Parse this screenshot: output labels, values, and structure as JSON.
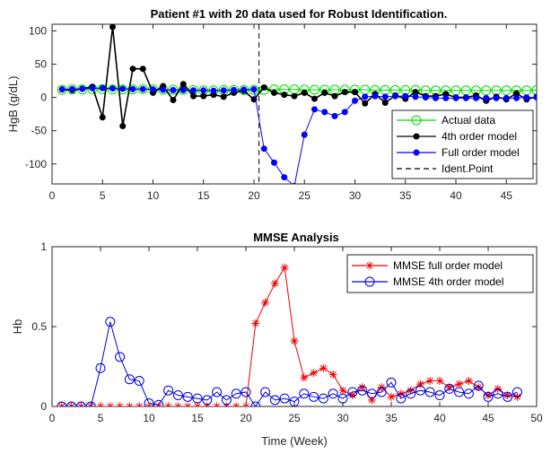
{
  "chart_data": [
    {
      "type": "line",
      "title": "Patient #1 with 20 data used for Robust Identification.",
      "xlabel": "",
      "ylabel": "HgB (g/dL)",
      "xlim": [
        0,
        48
      ],
      "ylim": [
        -130,
        110
      ],
      "xticks": [
        0,
        5,
        10,
        15,
        20,
        25,
        30,
        35,
        40,
        45
      ],
      "yticks": [
        -100,
        -50,
        0,
        50,
        100
      ],
      "grid": false,
      "legend_position": "bottom-right",
      "vline": {
        "x": 20.5,
        "label": "Ident.Point",
        "color": "#000000"
      },
      "series": [
        {
          "name": "Actual data",
          "color": "#00dd00",
          "marker": "circle-open",
          "x": [
            1,
            2,
            3,
            4,
            5,
            6,
            7,
            8,
            9,
            10,
            11,
            12,
            13,
            14,
            15,
            16,
            17,
            18,
            19,
            20,
            21,
            22,
            23,
            24,
            25,
            26,
            27,
            28,
            29,
            30,
            31,
            32,
            33,
            34,
            35,
            36,
            37,
            38,
            39,
            40,
            41,
            42,
            43,
            44,
            45,
            46,
            47,
            48
          ],
          "y": [
            11.5,
            12,
            12,
            12.5,
            12.5,
            12,
            12,
            12,
            12.5,
            12,
            11.5,
            11.5,
            11.5,
            11,
            10.5,
            10.5,
            11,
            11,
            11,
            11.5,
            11.5,
            12,
            12,
            12,
            11.5,
            11.5,
            11.5,
            11.5,
            11.5,
            11.5,
            11.5,
            11,
            11,
            11,
            11,
            11,
            10.5,
            10.5,
            10.5,
            10.5,
            10.5,
            10.5,
            10.5,
            10.5,
            10.5,
            10.5,
            10.5,
            11
          ]
        },
        {
          "name": "4th order model",
          "color": "#000000",
          "marker": "dot-filled",
          "x": [
            1,
            2,
            3,
            4,
            5,
            6,
            7,
            8,
            9,
            10,
            11,
            12,
            13,
            14,
            15,
            16,
            17,
            18,
            19,
            20,
            21,
            22,
            23,
            24,
            25,
            26,
            27,
            28,
            29,
            30,
            31,
            32,
            33,
            34,
            35,
            36,
            37,
            38,
            39,
            40,
            41,
            42,
            43,
            44,
            45,
            46,
            47,
            48
          ],
          "y": [
            12,
            11,
            13,
            16,
            -30,
            106,
            -43,
            43,
            43,
            7,
            17,
            -4,
            20,
            2,
            2,
            4,
            1,
            7,
            10,
            -3,
            15,
            7,
            4,
            2,
            7,
            -2,
            7,
            2,
            8,
            8,
            -9,
            5,
            -8,
            3,
            -2,
            8,
            2,
            2,
            5,
            0,
            0,
            3,
            -5,
            1,
            -3,
            6,
            -3,
            1
          ]
        },
        {
          "name": "Full order model",
          "color": "#0000ff",
          "marker": "dot-filled",
          "x": [
            1,
            2,
            3,
            4,
            5,
            6,
            7,
            8,
            9,
            10,
            11,
            12,
            13,
            14,
            15,
            16,
            17,
            18,
            19,
            20,
            21,
            22,
            23,
            24,
            25,
            26,
            27,
            28,
            29,
            30,
            31,
            32,
            33,
            34,
            35,
            36,
            37,
            38,
            39,
            40,
            41,
            42,
            43,
            44,
            45,
            46,
            47,
            48
          ],
          "y": [
            12,
            12.5,
            13,
            14,
            14,
            13.5,
            13,
            12.5,
            12.5,
            12,
            11.5,
            11,
            11,
            10.5,
            10.5,
            10,
            10.5,
            11,
            11.5,
            12,
            -77,
            -98,
            -120,
            -133,
            -56,
            -18,
            -22,
            -28,
            -22,
            -5,
            1,
            2,
            1,
            2,
            2,
            1,
            0,
            -1,
            -1,
            -1,
            -1,
            -1,
            -1,
            -1,
            -1,
            -1,
            0,
            0
          ]
        }
      ]
    },
    {
      "type": "line",
      "title": "MMSE Analysis",
      "xlabel": "Time (Week)",
      "ylabel": "Hb",
      "xlim": [
        0,
        50
      ],
      "ylim": [
        0,
        1
      ],
      "xticks": [
        0,
        5,
        10,
        15,
        20,
        25,
        30,
        35,
        40,
        45,
        50
      ],
      "yticks": [
        0,
        0.5,
        1
      ],
      "grid": false,
      "legend_position": "top-right",
      "series": [
        {
          "name": "MMSE full order model",
          "color": "#ee0000",
          "marker": "asterisk",
          "x": [
            1,
            2,
            3,
            4,
            5,
            6,
            7,
            8,
            9,
            10,
            11,
            12,
            13,
            14,
            15,
            16,
            17,
            18,
            19,
            20,
            21,
            22,
            23,
            24,
            25,
            26,
            27,
            28,
            29,
            30,
            31,
            32,
            33,
            34,
            35,
            36,
            37,
            38,
            39,
            40,
            41,
            42,
            43,
            44,
            45,
            46,
            47,
            48
          ],
          "y": [
            0,
            0,
            0,
            0,
            0,
            0,
            0,
            0,
            0,
            0,
            0,
            0,
            0,
            0,
            0,
            0,
            0,
            0,
            0,
            0,
            0.52,
            0.65,
            0.77,
            0.87,
            0.41,
            0.18,
            0.21,
            0.24,
            0.2,
            0.1,
            0.07,
            0.12,
            0.04,
            0.12,
            0.06,
            0.08,
            0.1,
            0.14,
            0.16,
            0.16,
            0.12,
            0.14,
            0.16,
            0.12,
            0.07,
            0.11,
            0.07,
            0.06
          ]
        },
        {
          "name": "MMSE 4th order model",
          "color": "#0000dd",
          "marker": "circle-open",
          "x": [
            1,
            2,
            3,
            4,
            5,
            6,
            7,
            8,
            9,
            10,
            11,
            12,
            13,
            14,
            15,
            16,
            17,
            18,
            19,
            20,
            21,
            22,
            23,
            24,
            25,
            26,
            27,
            28,
            29,
            30,
            31,
            32,
            33,
            34,
            35,
            36,
            37,
            38,
            39,
            40,
            41,
            42,
            43,
            44,
            45,
            46,
            47,
            48
          ],
          "y": [
            0,
            0,
            0,
            0,
            0.24,
            0.53,
            0.31,
            0.17,
            0.16,
            0.02,
            0.01,
            0.1,
            0.07,
            0.06,
            0.05,
            0.04,
            0.09,
            0.04,
            0.08,
            0.09,
            0,
            0.09,
            0.04,
            0.05,
            0.03,
            0.08,
            0.06,
            0.05,
            0.08,
            0.05,
            0.09,
            0.1,
            0.08,
            0.09,
            0.15,
            0.05,
            0.08,
            0.1,
            0.09,
            0.07,
            0.11,
            0.09,
            0.08,
            0.13,
            0.06,
            0.08,
            0.06,
            0.09
          ]
        }
      ]
    }
  ]
}
